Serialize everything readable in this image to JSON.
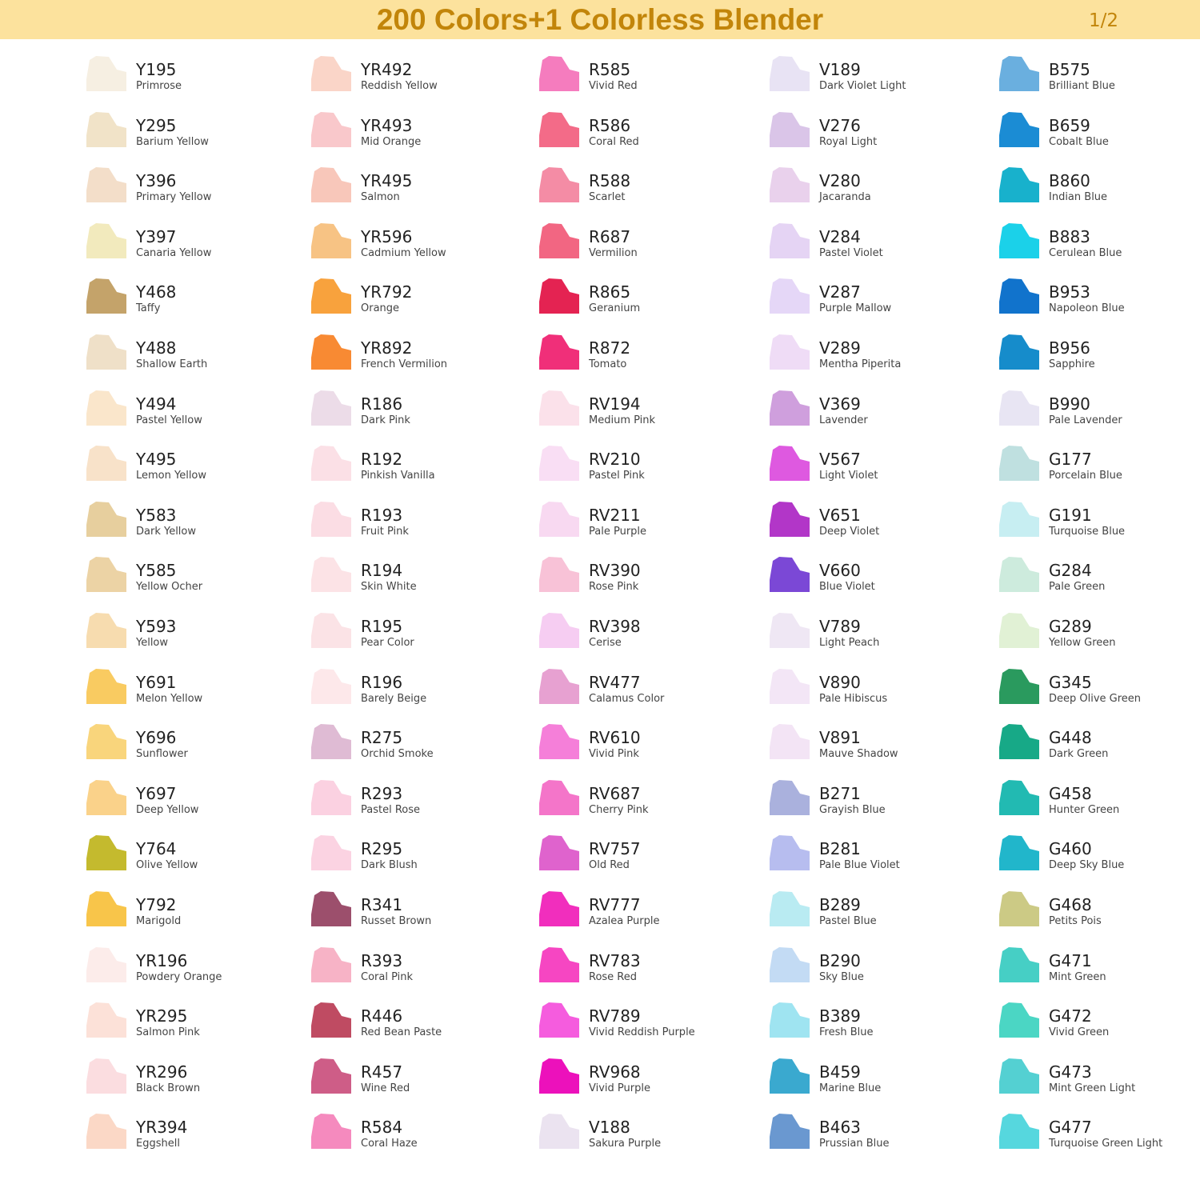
{
  "header": {
    "title": "200 Colors+1 Colorless Blender",
    "page": "1/2"
  },
  "columns": [
    [
      {
        "code": "Y195",
        "name": "Primrose",
        "color": "#f6efe2"
      },
      {
        "code": "Y295",
        "name": "Barium Yellow",
        "color": "#f1e3c8"
      },
      {
        "code": "Y396",
        "name": "Primary Yellow",
        "color": "#f3dec9"
      },
      {
        "code": "Y397",
        "name": "Canaria Yellow",
        "color": "#f2eabd"
      },
      {
        "code": "Y468",
        "name": "Taffy",
        "color": "#c4a36a"
      },
      {
        "code": "Y488",
        "name": "Shallow Earth",
        "color": "#efe0c8"
      },
      {
        "code": "Y494",
        "name": "Pastel Yellow",
        "color": "#fae6cb"
      },
      {
        "code": "Y495",
        "name": "Lemon Yellow",
        "color": "#f8e2c9"
      },
      {
        "code": "Y583",
        "name": "Dark Yellow",
        "color": "#e7cf9e"
      },
      {
        "code": "Y585",
        "name": "Yellow Ocher",
        "color": "#ecd3a5"
      },
      {
        "code": "Y593",
        "name": "Yellow",
        "color": "#f7dcaf"
      },
      {
        "code": "Y691",
        "name": "Melon Yellow",
        "color": "#f9cb61"
      },
      {
        "code": "Y696",
        "name": "Sunflower",
        "color": "#f9d57c"
      },
      {
        "code": "Y697",
        "name": "Deep Yellow",
        "color": "#fad28a"
      },
      {
        "code": "Y764",
        "name": "Olive Yellow",
        "color": "#c4ba2e"
      },
      {
        "code": "Y792",
        "name": "Marigold",
        "color": "#f8c54a"
      },
      {
        "code": "YR196",
        "name": "Powdery Orange",
        "color": "#fcecea"
      },
      {
        "code": "YR295",
        "name": "Salmon Pink",
        "color": "#fce1d8"
      },
      {
        "code": "YR296",
        "name": "Black Brown",
        "color": "#fbdde0"
      },
      {
        "code": "YR394",
        "name": "Eggshell",
        "color": "#fbd8c6"
      }
    ],
    [
      {
        "code": "YR492",
        "name": "Reddish Yellow",
        "color": "#fad5c8"
      },
      {
        "code": "YR493",
        "name": "Mid Orange",
        "color": "#f9c8cb"
      },
      {
        "code": "YR495",
        "name": "Salmon",
        "color": "#f8c7ba"
      },
      {
        "code": "YR596",
        "name": "Cadmium Yellow",
        "color": "#f7c384"
      },
      {
        "code": "YR792",
        "name": "Orange",
        "color": "#f8a23d"
      },
      {
        "code": "YR892",
        "name": "French Vermilion",
        "color": "#f88a33"
      },
      {
        "code": "R186",
        "name": "Dark Pink",
        "color": "#ecdce8"
      },
      {
        "code": "R192",
        "name": "Pinkish Vanilla",
        "color": "#fbe0e6"
      },
      {
        "code": "R193",
        "name": "Fruit Pink",
        "color": "#fbdde4"
      },
      {
        "code": "R194",
        "name": "Skin White",
        "color": "#fce3e6"
      },
      {
        "code": "R195",
        "name": "Pear Color",
        "color": "#fbe3e6"
      },
      {
        "code": "R196",
        "name": "Barely Beige",
        "color": "#fde8ea"
      },
      {
        "code": "R275",
        "name": "Orchid Smoke",
        "color": "#dfbbd4"
      },
      {
        "code": "R293",
        "name": "Pastel Rose",
        "color": "#fbd1e1"
      },
      {
        "code": "R295",
        "name": "Dark Blush",
        "color": "#fbd3e2"
      },
      {
        "code": "R341",
        "name": "Russet Brown",
        "color": "#9c4f6c"
      },
      {
        "code": "R393",
        "name": "Coral Pink",
        "color": "#f7b3c6"
      },
      {
        "code": "R446",
        "name": "Red Bean Paste",
        "color": "#bf4b62"
      },
      {
        "code": "R457",
        "name": "Wine Red",
        "color": "#ce5d87"
      },
      {
        "code": "R584",
        "name": "Coral Haze",
        "color": "#f58abe"
      }
    ],
    [
      {
        "code": "R585",
        "name": "Vivid Red",
        "color": "#f57cbe"
      },
      {
        "code": "R586",
        "name": "Coral Red",
        "color": "#f36b88"
      },
      {
        "code": "R588",
        "name": "Scarlet",
        "color": "#f48ca5"
      },
      {
        "code": "R687",
        "name": "Vermilion",
        "color": "#f26682"
      },
      {
        "code": "R865",
        "name": "Geranium",
        "color": "#e42352"
      },
      {
        "code": "R872",
        "name": "Tomato",
        "color": "#f02f79"
      },
      {
        "code": "RV194",
        "name": "Medium Pink",
        "color": "#fbe1ea"
      },
      {
        "code": "RV210",
        "name": "Pastel Pink",
        "color": "#f9def4"
      },
      {
        "code": "RV211",
        "name": "Pale Purple",
        "color": "#f8d9f1"
      },
      {
        "code": "RV390",
        "name": "Rose Pink",
        "color": "#f8c2d7"
      },
      {
        "code": "RV398",
        "name": "Cerise",
        "color": "#f6cdf2"
      },
      {
        "code": "RV477",
        "name": "Calamus Color",
        "color": "#e7a1d1"
      },
      {
        "code": "RV610",
        "name": "Vivid Pink",
        "color": "#f57fd9"
      },
      {
        "code": "RV687",
        "name": "Cherry Pink",
        "color": "#f475c9"
      },
      {
        "code": "RV757",
        "name": "Old Red",
        "color": "#df63cd"
      },
      {
        "code": "RV777",
        "name": "Azalea Purple",
        "color": "#f12ebd"
      },
      {
        "code": "RV783",
        "name": "Rose Red",
        "color": "#f646c2"
      },
      {
        "code": "RV789",
        "name": "Vivid Reddish Purple",
        "color": "#f55cde"
      },
      {
        "code": "RV968",
        "name": "Vivid Purple",
        "color": "#ec11bb"
      },
      {
        "code": "V188",
        "name": "Sakura Purple",
        "color": "#ebe3f0"
      }
    ],
    [
      {
        "code": "V189",
        "name": "Dark Violet Light",
        "color": "#e8e3f4"
      },
      {
        "code": "V276",
        "name": "Royal Light",
        "color": "#dac5e8"
      },
      {
        "code": "V280",
        "name": "Jacaranda",
        "color": "#e9d1ec"
      },
      {
        "code": "V284",
        "name": "Pastel Violet",
        "color": "#e5d4f4"
      },
      {
        "code": "V287",
        "name": "Purple Mallow",
        "color": "#e5d7f7"
      },
      {
        "code": "V289",
        "name": "Mentha Piperita",
        "color": "#efdcf6"
      },
      {
        "code": "V369",
        "name": "Lavender",
        "color": "#cf9fdd"
      },
      {
        "code": "V567",
        "name": "Light Violet",
        "color": "#de59e0"
      },
      {
        "code": "V651",
        "name": "Deep Violet",
        "color": "#b236c8"
      },
      {
        "code": "V660",
        "name": "Blue Violet",
        "color": "#7b48d6"
      },
      {
        "code": "V789",
        "name": "Light Peach",
        "color": "#efe7f4"
      },
      {
        "code": "V890",
        "name": "Pale Hibiscus",
        "color": "#f3e6f6"
      },
      {
        "code": "V891",
        "name": "Mauve Shadow",
        "color": "#f3e4f5"
      },
      {
        "code": "B271",
        "name": "Grayish Blue",
        "color": "#aab1dd"
      },
      {
        "code": "B281",
        "name": "Pale Blue Violet",
        "color": "#b7bdef"
      },
      {
        "code": "B289",
        "name": "Pastel Blue",
        "color": "#b9ebf2"
      },
      {
        "code": "B290",
        "name": "Sky Blue",
        "color": "#c3dbf4"
      },
      {
        "code": "B389",
        "name": "Fresh Blue",
        "color": "#9fe4f1"
      },
      {
        "code": "B459",
        "name": "Marine Blue",
        "color": "#3aa9cf"
      },
      {
        "code": "B463",
        "name": "Prussian Blue",
        "color": "#6a98d0"
      }
    ],
    [
      {
        "code": "B575",
        "name": "Brilliant Blue",
        "color": "#6aafdf"
      },
      {
        "code": "B659",
        "name": "Cobalt Blue",
        "color": "#1b8cd4"
      },
      {
        "code": "B860",
        "name": "Indian Blue",
        "color": "#18b1cc"
      },
      {
        "code": "B883",
        "name": "Cerulean Blue",
        "color": "#1bd1e9"
      },
      {
        "code": "B953",
        "name": "Napoleon Blue",
        "color": "#1173cc"
      },
      {
        "code": "B956",
        "name": "Sapphire",
        "color": "#168ccb"
      },
      {
        "code": "B990",
        "name": "Pale Lavender",
        "color": "#e8e5f3"
      },
      {
        "code": "G177",
        "name": "Porcelain Blue",
        "color": "#bfe0e0"
      },
      {
        "code": "G191",
        "name": "Turquoise Blue",
        "color": "#c7eef2"
      },
      {
        "code": "G284",
        "name": "Pale Green",
        "color": "#cdebdd"
      },
      {
        "code": "G289",
        "name": "Yellow Green",
        "color": "#e1f1d5"
      },
      {
        "code": "G345",
        "name": "Deep Olive Green",
        "color": "#2a9a5e"
      },
      {
        "code": "G448",
        "name": "Dark Green",
        "color": "#17a987"
      },
      {
        "code": "G458",
        "name": "Hunter Green",
        "color": "#22bab2"
      },
      {
        "code": "G460",
        "name": "Deep Sky Blue",
        "color": "#21b6cb"
      },
      {
        "code": "G468",
        "name": "Petits Pois",
        "color": "#ccca85"
      },
      {
        "code": "G471",
        "name": "Mint Green",
        "color": "#46cfc5"
      },
      {
        "code": "G472",
        "name": "Vivid Green",
        "color": "#4bd6c4"
      },
      {
        "code": "G473",
        "name": "Mint Green Light",
        "color": "#54d0d2"
      },
      {
        "code": "G477",
        "name": "Turquoise Green Light",
        "color": "#56d7de"
      }
    ]
  ]
}
